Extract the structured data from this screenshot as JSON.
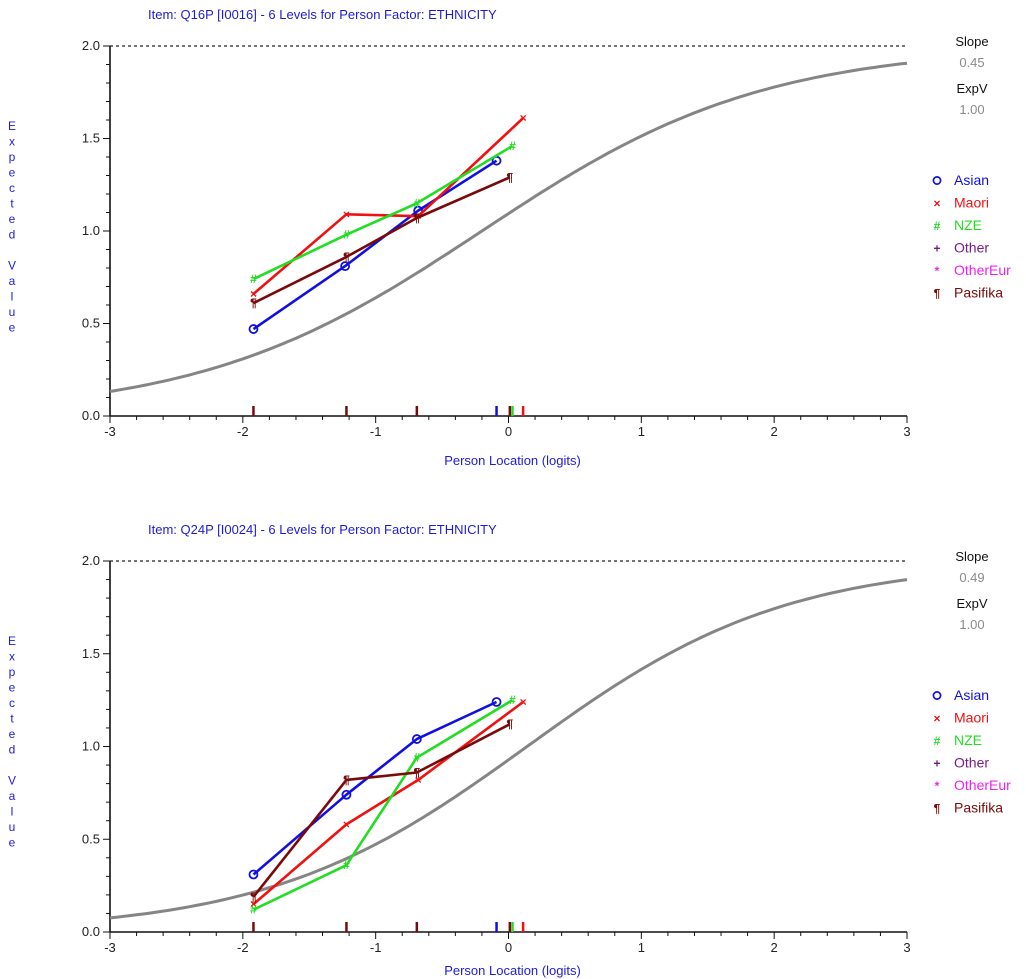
{
  "chart_data": [
    {
      "type": "line",
      "title": "Item: Q16P [I0016] - 6 Levels for Person Factor: ETHNICITY",
      "xlabel": "Person Location (logits)",
      "ylabel": "Expected Value",
      "xlim": [
        -3,
        3
      ],
      "ylim": [
        0,
        2
      ],
      "x_ticks": [
        "-3",
        "-2",
        "-1",
        "0",
        "1",
        "2",
        "3"
      ],
      "y_ticks": [
        "0.0",
        "0.5",
        "1.0",
        "1.5",
        "2.0"
      ],
      "max_score": 2,
      "slope_label": "Slope",
      "slope_value": "0.45",
      "expv_label": "ExpV",
      "expv_value": "1.00",
      "icc_location": -0.2,
      "icc_slope": 0.45,
      "legend_position": "right",
      "series": [
        {
          "name": "Asian",
          "symbol": "o",
          "color": "#1010e0",
          "points": [
            [
              -1.92,
              0.47
            ],
            [
              -1.23,
              0.81
            ],
            [
              -0.68,
              1.11
            ],
            [
              -0.09,
              1.38
            ]
          ]
        },
        {
          "name": "Maori",
          "symbol": "×",
          "color": "#f01010",
          "points": [
            [
              -1.92,
              0.66
            ],
            [
              -1.22,
              1.09
            ],
            [
              -0.68,
              1.08
            ],
            [
              0.11,
              1.61
            ]
          ]
        },
        {
          "name": "NZE",
          "symbol": "#",
          "color": "#22dd22",
          "points": [
            [
              -1.92,
              0.74
            ],
            [
              -1.22,
              0.98
            ],
            [
              -0.69,
              1.15
            ],
            [
              0.03,
              1.46
            ]
          ]
        },
        {
          "name": "Other",
          "symbol": "+",
          "color": "#7a1a8a",
          "points": []
        },
        {
          "name": "OtherEur",
          "symbol": "*",
          "color": "#f020f0",
          "points": []
        },
        {
          "name": "Pasifika",
          "symbol": "¶",
          "color": "#7a0a0a",
          "points": [
            [
              -1.92,
              0.61
            ],
            [
              -1.22,
              0.86
            ],
            [
              -0.69,
              1.07
            ],
            [
              0.01,
              1.29
            ]
          ]
        }
      ],
      "rug": [
        {
          "x": -1.92,
          "color": "#7a0a0a"
        },
        {
          "x": -1.22,
          "color": "#7a0a0a"
        },
        {
          "x": -0.69,
          "color": "#7a0a0a"
        },
        {
          "x": -0.09,
          "color": "#1010e0"
        },
        {
          "x": 0.01,
          "color": "#7a0a0a"
        },
        {
          "x": 0.03,
          "color": "#22dd22"
        },
        {
          "x": 0.11,
          "color": "#f01010"
        }
      ]
    },
    {
      "type": "line",
      "title": "Item: Q24P [I0024] - 6 Levels for Person Factor: ETHNICITY",
      "xlabel": "Person Location (logits)",
      "ylabel": "Expected Value",
      "xlim": [
        -3,
        3
      ],
      "ylim": [
        0,
        2
      ],
      "x_ticks": [
        "-3",
        "-2",
        "-1",
        "0",
        "1",
        "2",
        "3"
      ],
      "y_ticks": [
        "0.0",
        "0.5",
        "1.0",
        "1.5",
        "2.0"
      ],
      "max_score": 2,
      "slope_label": "Slope",
      "slope_value": "0.49",
      "expv_label": "ExpV",
      "expv_value": "1.00",
      "icc_location": 0.14,
      "icc_slope": 0.49,
      "legend_position": "right",
      "series": [
        {
          "name": "Asian",
          "symbol": "o",
          "color": "#1010e0",
          "points": [
            [
              -1.92,
              0.31
            ],
            [
              -1.22,
              0.74
            ],
            [
              -0.69,
              1.04
            ],
            [
              -0.09,
              1.24
            ]
          ]
        },
        {
          "name": "Maori",
          "symbol": "×",
          "color": "#f01010",
          "points": [
            [
              -1.92,
              0.15
            ],
            [
              -1.22,
              0.58
            ],
            [
              -0.68,
              0.82
            ],
            [
              0.11,
              1.24
            ]
          ]
        },
        {
          "name": "NZE",
          "symbol": "#",
          "color": "#22dd22",
          "points": [
            [
              -1.92,
              0.12
            ],
            [
              -1.22,
              0.36
            ],
            [
              -0.69,
              0.94
            ],
            [
              0.03,
              1.25
            ]
          ]
        },
        {
          "name": "Other",
          "symbol": "+",
          "color": "#7a1a8a",
          "points": []
        },
        {
          "name": "OtherEur",
          "symbol": "*",
          "color": "#f020f0",
          "points": []
        },
        {
          "name": "Pasifika",
          "symbol": "¶",
          "color": "#7a0a0a",
          "points": [
            [
              -1.92,
              0.19
            ],
            [
              -1.22,
              0.82
            ],
            [
              -0.69,
              0.86
            ],
            [
              0.01,
              1.12
            ]
          ]
        }
      ],
      "rug": [
        {
          "x": -1.92,
          "color": "#7a0a0a"
        },
        {
          "x": -1.22,
          "color": "#7a0a0a"
        },
        {
          "x": -0.69,
          "color": "#7a0a0a"
        },
        {
          "x": -0.09,
          "color": "#1010e0"
        },
        {
          "x": 0.01,
          "color": "#7a0a0a"
        },
        {
          "x": 0.03,
          "color": "#22dd22"
        },
        {
          "x": 0.11,
          "color": "#f01010"
        }
      ]
    }
  ]
}
